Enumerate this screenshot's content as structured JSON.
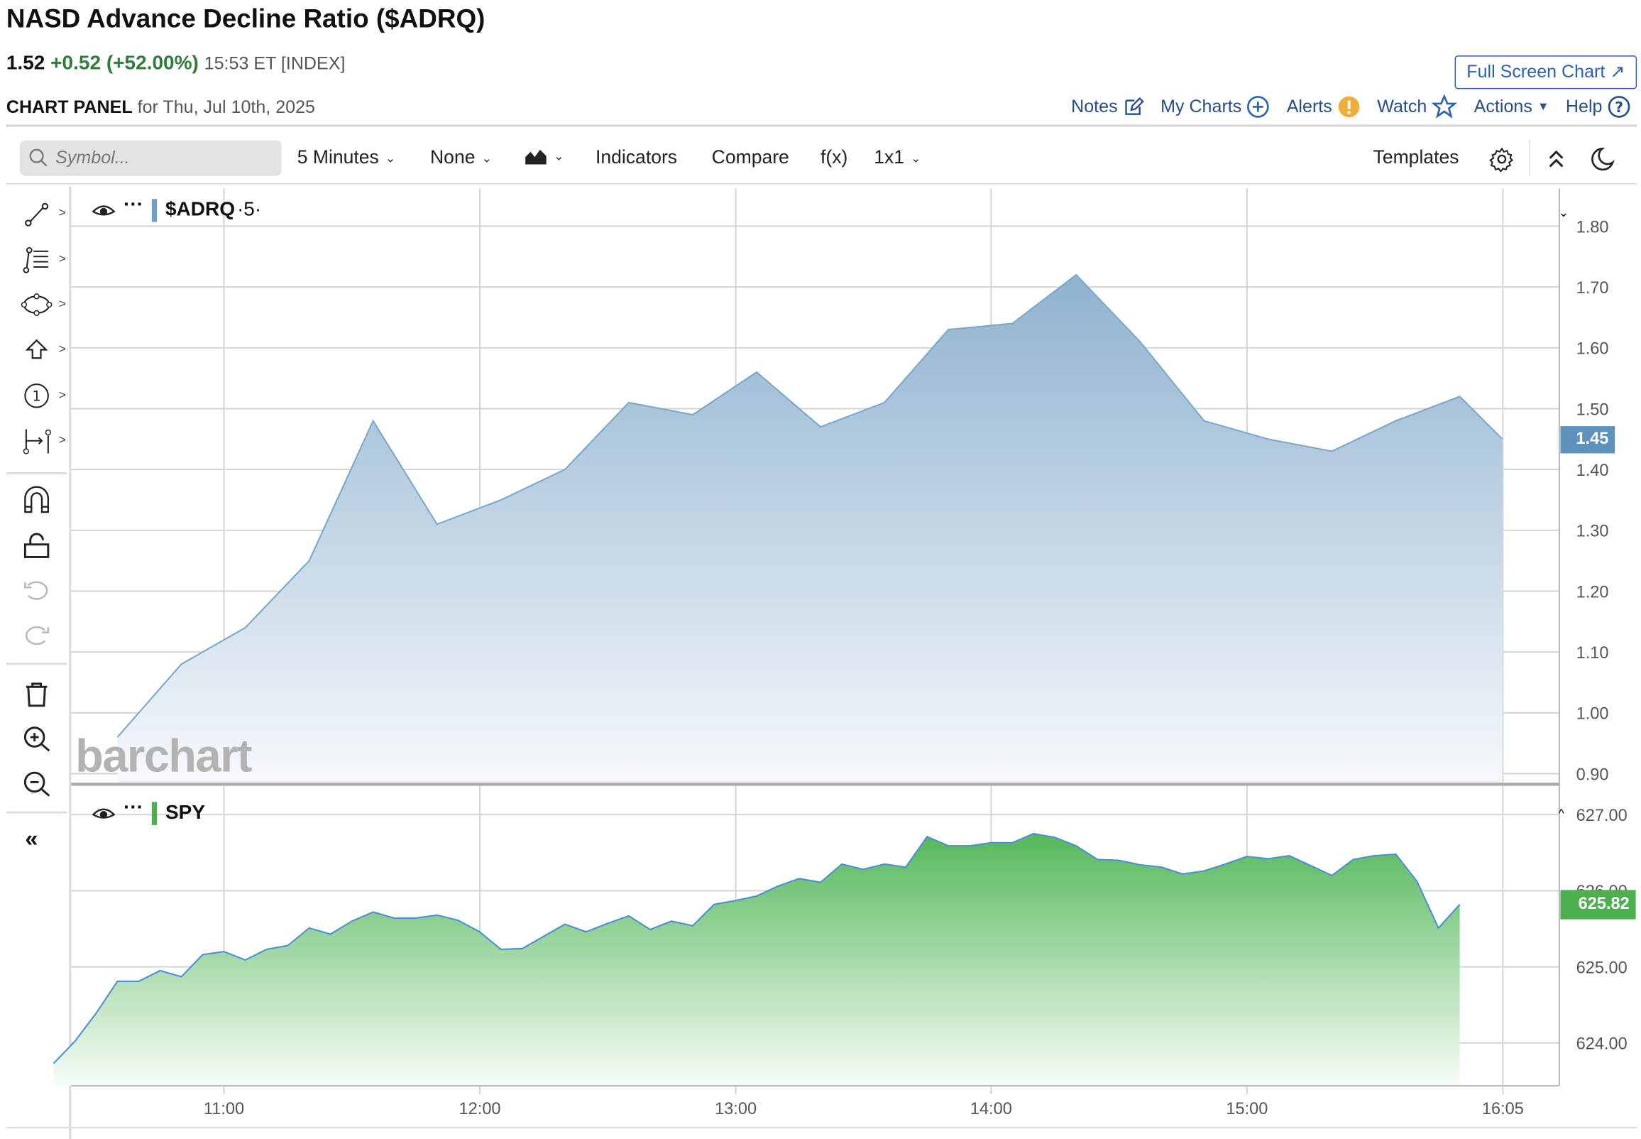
{
  "header": {
    "title": "NASD Advance Decline Ratio ($ADRQ)",
    "last": "1.52",
    "change": "+0.52 (+52.00%)",
    "time": "15:53 ET [INDEX]",
    "panel_label": "CHART PANEL",
    "panel_date": "for Thu, Jul 10th, 2025",
    "full_screen": "Full Screen Chart",
    "links": {
      "notes": "Notes",
      "my_charts": "My Charts",
      "alerts": "Alerts",
      "watch": "Watch",
      "actions": "Actions",
      "help": "Help"
    }
  },
  "toolbar": {
    "search_placeholder": "Symbol...",
    "interval": "5 Minutes",
    "aggregation": "None",
    "indicators": "Indicators",
    "compare": "Compare",
    "fx": "f(x)",
    "layout": "1x1",
    "templates": "Templates"
  },
  "watermark": "barchart",
  "colors": {
    "adrq": "#6f9fc7",
    "spy": "#4caf50",
    "spy_line": "#4a8fd8",
    "up": "#2e7d3a",
    "link": "#264d8c",
    "alert": "#f0ad3c"
  },
  "chart_data": [
    {
      "type": "area",
      "title": "$ADRQ",
      "legend_suffix": "·5·",
      "last_badge": "1.45",
      "ylim": [
        0.9,
        1.8
      ],
      "yticks": [
        "1.80",
        "1.70",
        "1.60",
        "1.50",
        "1.40",
        "1.30",
        "1.20",
        "1.10",
        "1.00",
        "0.90"
      ],
      "x": [
        "10:35",
        "10:50",
        "11:05",
        "11:20",
        "11:35",
        "11:50",
        "12:05",
        "12:20",
        "12:35",
        "12:50",
        "13:05",
        "13:20",
        "13:35",
        "13:50",
        "14:05",
        "14:20",
        "14:35",
        "14:50",
        "15:05",
        "15:20",
        "15:35",
        "15:50",
        "16:00"
      ],
      "values": [
        0.96,
        1.08,
        1.14,
        1.25,
        1.48,
        1.31,
        1.35,
        1.4,
        1.51,
        1.49,
        1.56,
        1.47,
        1.51,
        1.63,
        1.64,
        1.72,
        1.61,
        1.48,
        1.45,
        1.43,
        1.48,
        1.52,
        1.45
      ]
    },
    {
      "type": "area",
      "title": "SPY",
      "last_badge": "625.82",
      "ylim": [
        623.4,
        627.35
      ],
      "yticks": [
        "627.00",
        "626.00",
        "625.00",
        "624.00"
      ],
      "x_start": "10:20",
      "x_step_minutes": 5,
      "values": [
        623.73,
        624.02,
        624.39,
        624.81,
        624.81,
        624.95,
        624.87,
        625.16,
        625.2,
        625.09,
        625.23,
        625.28,
        625.51,
        625.43,
        625.6,
        625.72,
        625.64,
        625.64,
        625.68,
        625.61,
        625.46,
        625.23,
        625.24,
        625.4,
        625.56,
        625.46,
        625.57,
        625.67,
        625.49,
        625.6,
        625.54,
        625.82,
        625.87,
        625.93,
        626.06,
        626.16,
        626.11,
        626.35,
        626.28,
        626.35,
        626.31,
        626.71,
        626.59,
        626.59,
        626.63,
        626.63,
        626.75,
        626.7,
        626.59,
        626.41,
        626.4,
        626.34,
        626.31,
        626.22,
        626.26,
        626.35,
        626.45,
        626.42,
        626.46,
        626.33,
        626.2,
        626.41,
        626.46,
        626.48,
        626.12,
        625.51,
        625.82
      ]
    }
  ],
  "xaxis": {
    "ticks": [
      "11:00",
      "12:00",
      "13:00",
      "14:00",
      "15:00",
      "16:05"
    ]
  }
}
